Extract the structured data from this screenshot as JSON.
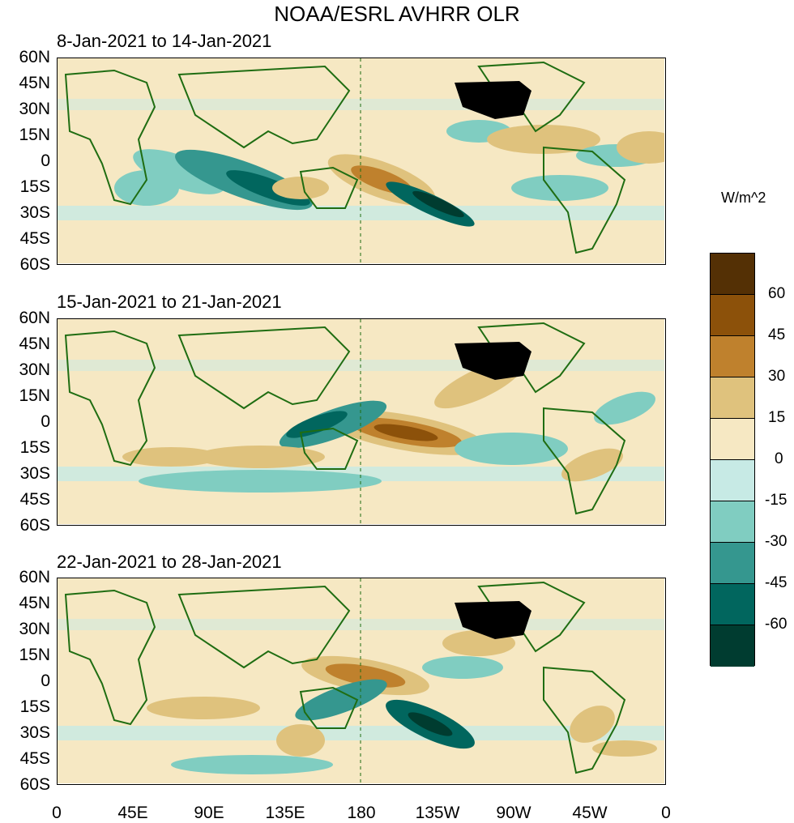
{
  "title": "NOAA/ESRL AVHRR OLR",
  "panels": [
    {
      "label": "8-Jan-2021 to 14-Jan-2021"
    },
    {
      "label": "15-Jan-2021 to 21-Jan-2021"
    },
    {
      "label": "22-Jan-2021 to 28-Jan-2021"
    }
  ],
  "lat_ticks": [
    "60N",
    "45N",
    "30N",
    "15N",
    "0",
    "15S",
    "30S",
    "45S",
    "60S"
  ],
  "lon_ticks": [
    "0",
    "45E",
    "90E",
    "135E",
    "180",
    "135W",
    "90W",
    "45W",
    "0"
  ],
  "colorbar": {
    "units": "W/m^2",
    "labels": [
      "60",
      "45",
      "30",
      "15",
      "0",
      "-15",
      "-30",
      "-45",
      "-60"
    ],
    "colors": [
      "#543005",
      "#8c510a",
      "#bf812d",
      "#dfc27d",
      "#f6e8c3",
      "#c7eae5",
      "#80cdc1",
      "#35978f",
      "#01665e",
      "#003c30"
    ]
  }
}
